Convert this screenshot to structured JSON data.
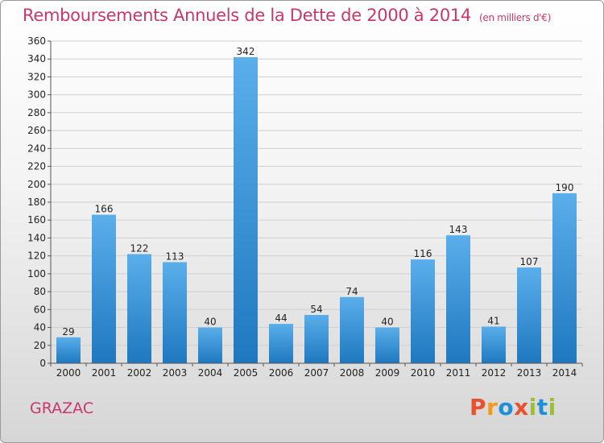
{
  "header": {
    "title": "Remboursements Annuels de la Dette de 2000 à 2014",
    "unit": "(en milliers d'€)"
  },
  "footer": {
    "commune": "GRAZAC",
    "logo_text": "Proxiti"
  },
  "colors": {
    "title": "#c8376b",
    "bar_top": "#5aaeea",
    "bar_bottom": "#1f78bf",
    "grid": "#d0d0d0",
    "logo_letters": [
      "#e8512d",
      "#f29a1d",
      "#1f8fd6",
      "#e8512d",
      "#9bc31f",
      "#1f8fd6",
      "#9bc31f"
    ]
  },
  "chart_data": {
    "type": "bar",
    "title": "Remboursements Annuels de la Dette de 2000 à 2014",
    "subtitle": "(en milliers d'€)",
    "xlabel": "",
    "ylabel": "",
    "categories": [
      "2000",
      "2001",
      "2002",
      "2003",
      "2004",
      "2005",
      "2006",
      "2007",
      "2008",
      "2009",
      "2010",
      "2011",
      "2012",
      "2013",
      "2014"
    ],
    "values": [
      29,
      166,
      122,
      113,
      40,
      342,
      44,
      54,
      74,
      40,
      116,
      143,
      41,
      107,
      190
    ],
    "ylim": [
      0,
      360
    ],
    "yticks": [
      0,
      20,
      40,
      60,
      80,
      100,
      120,
      140,
      160,
      180,
      200,
      220,
      240,
      260,
      280,
      300,
      320,
      340,
      360
    ],
    "grid": true,
    "legend": "none"
  }
}
